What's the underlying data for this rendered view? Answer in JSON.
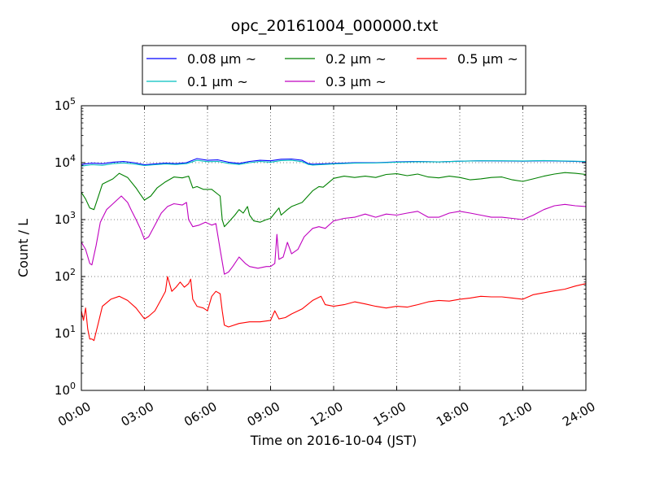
{
  "chart_data": {
    "type": "line",
    "title": "opc_20161004_000000.txt",
    "xlabel": "Time on 2016-10-04 (JST)",
    "ylabel": "Count / L",
    "x_unit": "hours",
    "xlim": [
      0,
      24
    ],
    "ylim": [
      1,
      100000
    ],
    "y_scale": "log",
    "grid": true,
    "legend_position": "top-center",
    "x_ticks": [
      {
        "value": 0,
        "label": "00:00"
      },
      {
        "value": 3,
        "label": "03:00"
      },
      {
        "value": 6,
        "label": "06:00"
      },
      {
        "value": 9,
        "label": "09:00"
      },
      {
        "value": 12,
        "label": "12:00"
      },
      {
        "value": 15,
        "label": "15:00"
      },
      {
        "value": 18,
        "label": "18:00"
      },
      {
        "value": 21,
        "label": "21:00"
      },
      {
        "value": 24,
        "label": "24:00"
      }
    ],
    "y_ticks": [
      {
        "value": 1,
        "base": "10",
        "exp": "0"
      },
      {
        "value": 10,
        "base": "10",
        "exp": "1"
      },
      {
        "value": 100,
        "base": "10",
        "exp": "2"
      },
      {
        "value": 1000,
        "base": "10",
        "exp": "3"
      },
      {
        "value": 10000,
        "base": "10",
        "exp": "4"
      },
      {
        "value": 100000,
        "base": "10",
        "exp": "5"
      }
    ],
    "series": [
      {
        "name": "0.08 μm ~",
        "color": "#0000ff",
        "points": [
          [
            0,
            9300
          ],
          [
            0.5,
            9800
          ],
          [
            1.0,
            9600
          ],
          [
            1.5,
            10200
          ],
          [
            2.0,
            10500
          ],
          [
            2.5,
            10000
          ],
          [
            3.0,
            9200
          ],
          [
            3.5,
            9500
          ],
          [
            4.0,
            9800
          ],
          [
            4.5,
            9600
          ],
          [
            5.0,
            10000
          ],
          [
            5.5,
            11800
          ],
          [
            6.0,
            11000
          ],
          [
            6.5,
            11200
          ],
          [
            7.0,
            10200
          ],
          [
            7.5,
            9700
          ],
          [
            8.0,
            10500
          ],
          [
            8.5,
            11000
          ],
          [
            9.0,
            10800
          ],
          [
            9.5,
            11500
          ],
          [
            10.0,
            11600
          ],
          [
            10.5,
            11000
          ],
          [
            10.8,
            9600
          ],
          [
            11.0,
            9400
          ],
          [
            12.0,
            9700
          ],
          [
            13.0,
            10000
          ],
          [
            14.0,
            10000
          ],
          [
            15.0,
            10300
          ],
          [
            16.0,
            10500
          ],
          [
            17.0,
            10300
          ],
          [
            18.0,
            10600
          ],
          [
            19.0,
            10800
          ],
          [
            20.0,
            10700
          ],
          [
            21.0,
            10600
          ],
          [
            22.0,
            10800
          ],
          [
            23.0,
            10600
          ],
          [
            24.0,
            10400
          ]
        ]
      },
      {
        "name": "0.1 μm ~",
        "color": "#00bfbf",
        "points": [
          [
            0,
            8700
          ],
          [
            0.5,
            9200
          ],
          [
            1.0,
            9000
          ],
          [
            1.5,
            9600
          ],
          [
            2.0,
            9900
          ],
          [
            2.5,
            9500
          ],
          [
            3.0,
            8900
          ],
          [
            3.5,
            9200
          ],
          [
            4.0,
            9500
          ],
          [
            4.5,
            9300
          ],
          [
            5.0,
            9600
          ],
          [
            5.5,
            11000
          ],
          [
            6.0,
            10400
          ],
          [
            6.5,
            10500
          ],
          [
            7.0,
            9700
          ],
          [
            7.5,
            9300
          ],
          [
            8.0,
            10000
          ],
          [
            8.5,
            10500
          ],
          [
            9.0,
            10200
          ],
          [
            9.5,
            10900
          ],
          [
            10.0,
            11000
          ],
          [
            10.5,
            10400
          ],
          [
            10.8,
            9300
          ],
          [
            11.0,
            9100
          ],
          [
            12.0,
            9500
          ],
          [
            13.0,
            9800
          ],
          [
            14.0,
            9900
          ],
          [
            15.0,
            10200
          ],
          [
            16.0,
            10400
          ],
          [
            17.0,
            10300
          ],
          [
            18.0,
            10600
          ],
          [
            19.0,
            10800
          ],
          [
            20.0,
            10800
          ],
          [
            21.0,
            10700
          ],
          [
            22.0,
            10900
          ],
          [
            23.0,
            10700
          ],
          [
            24.0,
            10500
          ]
        ]
      },
      {
        "name": "0.2 μm ~",
        "color": "#008000",
        "points": [
          [
            0,
            3000
          ],
          [
            0.2,
            2300
          ],
          [
            0.4,
            1600
          ],
          [
            0.6,
            1500
          ],
          [
            0.8,
            2500
          ],
          [
            1.0,
            4200
          ],
          [
            1.5,
            5200
          ],
          [
            1.8,
            6500
          ],
          [
            2.2,
            5500
          ],
          [
            2.6,
            3600
          ],
          [
            2.8,
            2800
          ],
          [
            3.0,
            2200
          ],
          [
            3.3,
            2600
          ],
          [
            3.6,
            3600
          ],
          [
            4.0,
            4600
          ],
          [
            4.4,
            5600
          ],
          [
            4.8,
            5400
          ],
          [
            5.1,
            5800
          ],
          [
            5.3,
            3600
          ],
          [
            5.5,
            3800
          ],
          [
            5.8,
            3400
          ],
          [
            6.2,
            3400
          ],
          [
            6.6,
            2600
          ],
          [
            6.7,
            1000
          ],
          [
            6.8,
            750
          ],
          [
            7.0,
            900
          ],
          [
            7.3,
            1200
          ],
          [
            7.5,
            1500
          ],
          [
            7.7,
            1300
          ],
          [
            7.9,
            1700
          ],
          [
            8.0,
            1200
          ],
          [
            8.2,
            950
          ],
          [
            8.5,
            900
          ],
          [
            8.8,
            1000
          ],
          [
            9.0,
            1050
          ],
          [
            9.2,
            1300
          ],
          [
            9.4,
            1600
          ],
          [
            9.5,
            1200
          ],
          [
            9.8,
            1500
          ],
          [
            10.0,
            1700
          ],
          [
            10.5,
            2000
          ],
          [
            11.0,
            3200
          ],
          [
            11.3,
            3800
          ],
          [
            11.5,
            3700
          ],
          [
            12.0,
            5300
          ],
          [
            12.5,
            5800
          ],
          [
            13.0,
            5500
          ],
          [
            13.5,
            5800
          ],
          [
            14.0,
            5500
          ],
          [
            14.5,
            6200
          ],
          [
            15.0,
            6400
          ],
          [
            15.5,
            5900
          ],
          [
            16.0,
            6300
          ],
          [
            16.5,
            5600
          ],
          [
            17.0,
            5400
          ],
          [
            17.5,
            5800
          ],
          [
            18.0,
            5500
          ],
          [
            18.5,
            5000
          ],
          [
            19.0,
            5200
          ],
          [
            19.5,
            5500
          ],
          [
            20.0,
            5600
          ],
          [
            20.5,
            5000
          ],
          [
            21.0,
            4700
          ],
          [
            21.5,
            5200
          ],
          [
            22.0,
            5800
          ],
          [
            22.5,
            6300
          ],
          [
            23.0,
            6700
          ],
          [
            23.5,
            6500
          ],
          [
            24.0,
            6200
          ]
        ]
      },
      {
        "name": "0.3 μm ~",
        "color": "#bf00bf",
        "points": [
          [
            0,
            400
          ],
          [
            0.2,
            300
          ],
          [
            0.4,
            170
          ],
          [
            0.5,
            160
          ],
          [
            0.7,
            350
          ],
          [
            0.9,
            900
          ],
          [
            1.2,
            1500
          ],
          [
            1.5,
            1900
          ],
          [
            1.9,
            2600
          ],
          [
            2.2,
            2000
          ],
          [
            2.4,
            1400
          ],
          [
            2.6,
            1000
          ],
          [
            2.8,
            700
          ],
          [
            3.0,
            450
          ],
          [
            3.2,
            500
          ],
          [
            3.5,
            800
          ],
          [
            3.8,
            1300
          ],
          [
            4.1,
            1700
          ],
          [
            4.4,
            1900
          ],
          [
            4.8,
            1800
          ],
          [
            5.0,
            2000
          ],
          [
            5.1,
            1000
          ],
          [
            5.3,
            750
          ],
          [
            5.6,
            800
          ],
          [
            5.9,
            900
          ],
          [
            6.2,
            800
          ],
          [
            6.4,
            850
          ],
          [
            6.6,
            300
          ],
          [
            6.8,
            110
          ],
          [
            7.0,
            120
          ],
          [
            7.2,
            150
          ],
          [
            7.5,
            220
          ],
          [
            7.8,
            170
          ],
          [
            8.0,
            150
          ],
          [
            8.4,
            140
          ],
          [
            8.8,
            150
          ],
          [
            9.0,
            150
          ],
          [
            9.2,
            170
          ],
          [
            9.3,
            550
          ],
          [
            9.4,
            200
          ],
          [
            9.6,
            220
          ],
          [
            9.8,
            400
          ],
          [
            10.0,
            250
          ],
          [
            10.3,
            300
          ],
          [
            10.6,
            500
          ],
          [
            11.0,
            700
          ],
          [
            11.3,
            750
          ],
          [
            11.6,
            700
          ],
          [
            12.0,
            950
          ],
          [
            12.5,
            1050
          ],
          [
            13.0,
            1100
          ],
          [
            13.5,
            1250
          ],
          [
            14.0,
            1100
          ],
          [
            14.5,
            1250
          ],
          [
            15.0,
            1200
          ],
          [
            15.5,
            1300
          ],
          [
            16.0,
            1400
          ],
          [
            16.5,
            1100
          ],
          [
            17.0,
            1100
          ],
          [
            17.5,
            1300
          ],
          [
            18.0,
            1400
          ],
          [
            18.5,
            1300
          ],
          [
            19.0,
            1200
          ],
          [
            19.5,
            1100
          ],
          [
            20.0,
            1100
          ],
          [
            20.5,
            1050
          ],
          [
            21.0,
            1000
          ],
          [
            21.5,
            1200
          ],
          [
            22.0,
            1500
          ],
          [
            22.5,
            1750
          ],
          [
            23.0,
            1850
          ],
          [
            23.5,
            1750
          ],
          [
            24.0,
            1700
          ]
        ]
      },
      {
        "name": "0.5 μm ~",
        "color": "#ff0000",
        "points": [
          [
            0,
            25
          ],
          [
            0.1,
            17
          ],
          [
            0.2,
            28
          ],
          [
            0.3,
            12
          ],
          [
            0.4,
            8
          ],
          [
            0.5,
            8
          ],
          [
            0.6,
            7.5
          ],
          [
            0.8,
            15
          ],
          [
            1.0,
            30
          ],
          [
            1.4,
            40
          ],
          [
            1.8,
            45
          ],
          [
            2.2,
            38
          ],
          [
            2.6,
            28
          ],
          [
            3.0,
            18
          ],
          [
            3.2,
            20
          ],
          [
            3.5,
            25
          ],
          [
            3.8,
            40
          ],
          [
            4.0,
            55
          ],
          [
            4.1,
            100
          ],
          [
            4.3,
            55
          ],
          [
            4.5,
            65
          ],
          [
            4.7,
            80
          ],
          [
            4.9,
            65
          ],
          [
            5.1,
            75
          ],
          [
            5.2,
            90
          ],
          [
            5.3,
            40
          ],
          [
            5.5,
            30
          ],
          [
            5.8,
            28
          ],
          [
            6.0,
            25
          ],
          [
            6.2,
            45
          ],
          [
            6.4,
            55
          ],
          [
            6.6,
            50
          ],
          [
            6.7,
            25
          ],
          [
            6.8,
            14
          ],
          [
            7.0,
            13
          ],
          [
            7.5,
            15
          ],
          [
            8.0,
            16
          ],
          [
            8.5,
            16
          ],
          [
            9.0,
            17
          ],
          [
            9.2,
            25
          ],
          [
            9.4,
            18
          ],
          [
            9.7,
            19
          ],
          [
            10.0,
            22
          ],
          [
            10.5,
            27
          ],
          [
            11.0,
            38
          ],
          [
            11.4,
            45
          ],
          [
            11.6,
            32
          ],
          [
            12.0,
            30
          ],
          [
            12.5,
            32
          ],
          [
            13.0,
            36
          ],
          [
            13.5,
            33
          ],
          [
            14.0,
            30
          ],
          [
            14.5,
            28
          ],
          [
            15.0,
            30
          ],
          [
            15.5,
            29
          ],
          [
            16.0,
            32
          ],
          [
            16.5,
            36
          ],
          [
            17.0,
            38
          ],
          [
            17.5,
            37
          ],
          [
            18.0,
            40
          ],
          [
            18.5,
            42
          ],
          [
            19.0,
            45
          ],
          [
            19.5,
            44
          ],
          [
            20.0,
            44
          ],
          [
            20.5,
            42
          ],
          [
            21.0,
            40
          ],
          [
            21.5,
            48
          ],
          [
            22.0,
            52
          ],
          [
            22.5,
            56
          ],
          [
            23.0,
            60
          ],
          [
            23.5,
            68
          ],
          [
            24.0,
            75
          ]
        ]
      }
    ]
  }
}
